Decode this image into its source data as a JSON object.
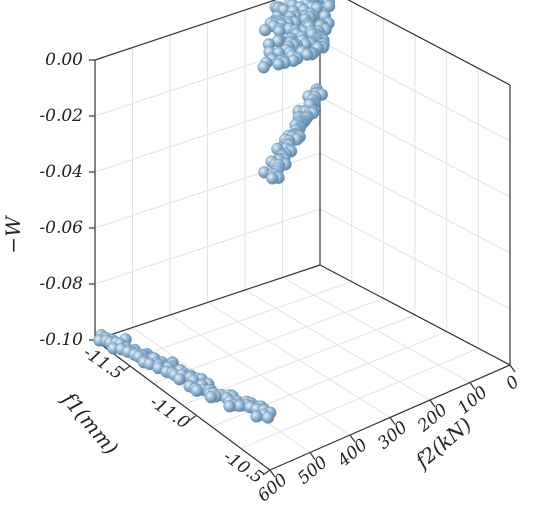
{
  "chart_data": {
    "type": "scatter",
    "title": "",
    "projection": "3d",
    "grid": true,
    "marker_color": "#8fb3d0",
    "axes": {
      "x": {
        "label_main": "f",
        "label_sub": "1",
        "label_unit": "(mm)",
        "ticks": [
          "-11.5",
          "-11.0",
          "-10.5"
        ],
        "range": [
          -11.7,
          -10.5
        ]
      },
      "y": {
        "label_main": "f",
        "label_sub": "2",
        "label_unit": "(kN)",
        "ticks": [
          "0",
          "100",
          "200",
          "300",
          "400",
          "500",
          "600"
        ],
        "range": [
          0,
          600
        ]
      },
      "z": {
        "label": "−W",
        "ticks": [
          "0.00",
          "-0.02",
          "-0.04",
          "-0.06",
          "-0.08",
          "-0.10"
        ],
        "range": [
          -0.1,
          0.0
        ]
      }
    },
    "clusters": [
      {
        "name": "",
        "f1_range": [
          -11.7,
          -10.7
        ],
        "f2": 600,
        "w_range": [
          -0.1,
          -0.084
        ],
        "n": 95
      },
      {
        "name": "",
        "f1_range": [
          -11.7,
          -11.6
        ],
        "f2_range": [
          0,
          150
        ],
        "w_range": [
          -0.06,
          -0.04
        ],
        "n": 70
      },
      {
        "name": "",
        "f1_range": [
          -11.7,
          -11.6
        ],
        "f2_range": [
          0,
          150
        ],
        "w_range": [
          -0.02,
          0.0
        ],
        "n": 110
      }
    ]
  }
}
